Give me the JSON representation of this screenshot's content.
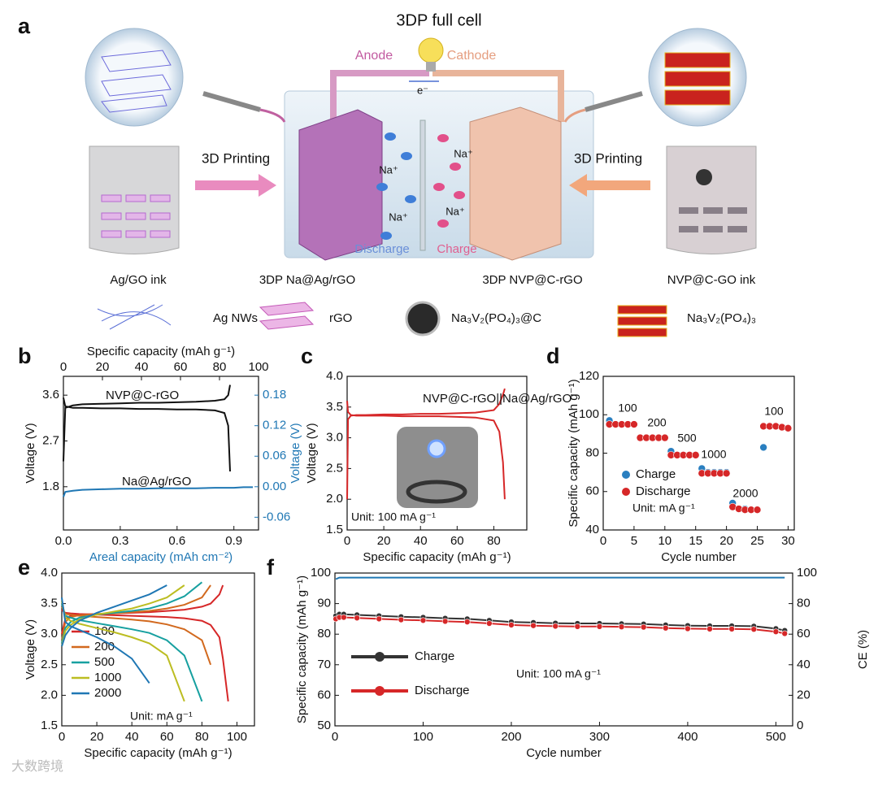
{
  "figure": {
    "panel_label": "a",
    "title": "3DP full cell",
    "anode": "Anode",
    "cathode": "Cathode",
    "electron": "e⁻",
    "printing_left": "3D Printing",
    "printing_right": "3D Printing",
    "ions": [
      "Na⁺",
      "Na⁺",
      "Na⁺",
      "Na⁺"
    ],
    "discharge": "Discharge",
    "charge": "Charge",
    "captions": [
      "Ag/GO ink",
      "3DP Na@Ag/rGO",
      "3DP NVP@C-rGO",
      "NVP@C-GO ink"
    ],
    "legend": [
      "Ag NWs",
      "rGO",
      "Na₃V₂(PO₄)₃@C",
      "Na₃V₂(PO₄)₃"
    ],
    "watermark": "大数跨境"
  },
  "chart_data": [
    {
      "type": "line",
      "panel_label": "b",
      "x_label": "Areal capacity (mAh cm⁻²)",
      "x_label_color": "#1f77b4",
      "x2_label": "Specific capacity (mAh g⁻¹)",
      "y_label": "Voltage (V)",
      "y2_label": "Voltage (V)",
      "y2_color": "#1f77b4",
      "xlim": [
        0,
        1.03
      ],
      "xticks": [
        {
          "value": 0,
          "label": "0.0"
        },
        0.3,
        0.6,
        0.9
      ],
      "x2lim": [
        0,
        100
      ],
      "x2ticks": [
        0,
        20,
        40,
        60,
        80,
        100
      ],
      "ylim": [
        0.95,
        3.97
      ],
      "yticks": [
        1.8,
        2.7,
        3.6
      ],
      "y2lim": [
        -0.085,
        0.217
      ],
      "y2ticks": [
        -0.06,
        {
          "value": 0,
          "label": "0.00"
        },
        0.06,
        0.12,
        0.18
      ],
      "x": [
        0,
        0.01,
        0.05,
        0.1,
        0.2,
        0.3,
        0.4,
        0.5,
        0.6,
        0.7,
        0.8,
        0.85,
        0.87,
        0.88,
        0.9,
        0.95,
        1.0
      ],
      "series": [
        {
          "name": "NVP@C-rGO",
          "color": "#111111",
          "charge": [
            2.3,
            3.35,
            3.4,
            3.42,
            3.43,
            3.44,
            3.45,
            3.45,
            3.46,
            3.47,
            3.49,
            3.52,
            3.6,
            3.8,
            null,
            null,
            null
          ],
          "discharge": [
            3.55,
            3.38,
            3.35,
            3.35,
            3.34,
            3.34,
            3.33,
            3.33,
            3.32,
            3.32,
            3.3,
            3.25,
            3.0,
            2.1,
            null,
            null,
            null
          ]
        },
        {
          "name": "Na@Ag/rGO",
          "color": "#1f77b4",
          "axis": "y2",
          "values": [
            -0.02,
            -0.01,
            -0.008,
            -0.006,
            -0.005,
            -0.004,
            -0.004,
            -0.003,
            -0.003,
            -0.003,
            -0.002,
            -0.002,
            -0.002,
            -0.002,
            -0.002,
            -0.001,
            -0.001
          ]
        }
      ]
    },
    {
      "type": "line",
      "panel_label": "c",
      "x_label": "Specific capacity (mAh g⁻¹)",
      "y_label": "Voltage (V)",
      "xlim": [
        0,
        98
      ],
      "xticks": [
        0,
        20,
        40,
        60,
        80
      ],
      "ylim": [
        1.5,
        4.0
      ],
      "yticks": [
        1.5,
        {
          "value": 2,
          "label": "2.0"
        },
        2.5,
        {
          "value": 3,
          "label": "3.0"
        },
        3.5,
        {
          "value": 4,
          "label": "4.0"
        }
      ],
      "x": [
        0,
        0.5,
        2,
        5,
        10,
        20,
        30,
        40,
        50,
        60,
        70,
        80,
        83,
        85,
        86
      ],
      "series": [
        {
          "name": "NVP@C-rGO||Na@Ag/rGO",
          "color": "#d62728",
          "charge": [
            2.0,
            3.3,
            3.36,
            3.37,
            3.37,
            3.38,
            3.38,
            3.39,
            3.39,
            3.4,
            3.41,
            3.45,
            3.55,
            3.7,
            3.8
          ],
          "discharge": [
            3.6,
            3.42,
            3.37,
            3.36,
            3.36,
            3.36,
            3.35,
            3.35,
            3.35,
            3.34,
            3.33,
            3.28,
            3.1,
            2.6,
            2.0
          ]
        }
      ],
      "annotations": [
        "Unit: 100 mA g⁻¹"
      ]
    },
    {
      "type": "scatter",
      "panel_label": "d",
      "x_label": "Cycle number",
      "y_label": "Specific capacity (mAh g⁻¹)",
      "xlim": [
        0,
        31
      ],
      "xticks": [
        0,
        5,
        10,
        15,
        20,
        25,
        30
      ],
      "ylim": [
        40,
        120
      ],
      "yticks": [
        40,
        60,
        80,
        100,
        120
      ],
      "x": [
        1,
        2,
        3,
        4,
        5,
        6,
        7,
        8,
        9,
        10,
        11,
        12,
        13,
        14,
        15,
        16,
        17,
        18,
        19,
        20,
        21,
        22,
        23,
        24,
        25,
        26,
        27,
        28,
        29,
        30
      ],
      "series": [
        {
          "name": "Charge",
          "color": "#2a7fc0",
          "values": [
            97,
            95,
            95,
            95,
            95,
            88,
            88,
            88,
            88,
            88,
            81,
            79,
            79,
            79,
            79,
            72,
            70,
            70,
            70,
            70,
            54,
            51,
            51,
            50.5,
            50.5,
            83,
            94,
            94,
            93.5,
            93
          ]
        },
        {
          "name": "Discharge",
          "color": "#d62728",
          "values": [
            95,
            95,
            95,
            95,
            95,
            88,
            88,
            88,
            88,
            88,
            79,
            79,
            79,
            79,
            79,
            69.5,
            69.5,
            69.5,
            69.5,
            69.5,
            52,
            51,
            50.5,
            50.5,
            50.5,
            94,
            94,
            94,
            93.5,
            93
          ]
        }
      ],
      "legend": true,
      "annotations": [
        "100",
        "200",
        "500",
        "1000",
        "2000",
        "100",
        "Unit: mA g⁻¹"
      ]
    },
    {
      "type": "line",
      "panel_label": "e",
      "x_label": "Specific capacity (mAh g⁻¹)",
      "y_label": "Voltage (V)",
      "xlim": [
        0,
        110
      ],
      "xticks": [
        0,
        20,
        40,
        60,
        80,
        100
      ],
      "ylim": [
        1.5,
        4.0
      ],
      "yticks": [
        1.5,
        {
          "value": 2,
          "label": "2.0"
        },
        2.5,
        {
          "value": 3,
          "label": "3.0"
        },
        3.5,
        {
          "value": 4,
          "label": "4.0"
        }
      ],
      "x": [
        0,
        2,
        5,
        10,
        20,
        30,
        40,
        50,
        60,
        70,
        80,
        85,
        90,
        92,
        95
      ],
      "series": [
        {
          "name": "100",
          "color": "#d62728",
          "charge": [
            3.0,
            3.25,
            3.3,
            3.32,
            3.33,
            3.34,
            3.35,
            3.36,
            3.38,
            3.4,
            3.45,
            3.5,
            3.65,
            3.8,
            null
          ],
          "discharge": [
            3.4,
            3.35,
            3.34,
            3.33,
            3.32,
            3.31,
            3.3,
            3.29,
            3.28,
            3.26,
            3.22,
            3.15,
            2.95,
            2.6,
            1.9
          ]
        },
        {
          "name": "200",
          "color": "#d2691e",
          "charge": [
            2.9,
            3.2,
            3.28,
            3.31,
            3.33,
            3.34,
            3.36,
            3.38,
            3.42,
            3.48,
            3.6,
            3.8,
            null,
            null,
            null
          ],
          "discharge": [
            3.45,
            3.33,
            3.32,
            3.3,
            3.28,
            3.26,
            3.24,
            3.21,
            3.16,
            3.08,
            2.9,
            2.5,
            null,
            null,
            null
          ]
        },
        {
          "name": "500",
          "color": "#17a0a0",
          "charge": [
            2.85,
            3.1,
            3.2,
            3.27,
            3.32,
            3.35,
            3.38,
            3.42,
            3.5,
            3.62,
            3.85,
            null,
            null,
            null,
            null
          ],
          "discharge": [
            3.5,
            3.3,
            3.27,
            3.23,
            3.18,
            3.13,
            3.08,
            3.02,
            2.9,
            2.65,
            1.9,
            null,
            null,
            null,
            null
          ]
        },
        {
          "name": "1000",
          "color": "#bcbd22",
          "charge": [
            2.8,
            3.05,
            3.15,
            3.24,
            3.32,
            3.37,
            3.42,
            3.5,
            3.6,
            3.8,
            null,
            null,
            null,
            null,
            null
          ],
          "discharge": [
            3.55,
            3.27,
            3.22,
            3.17,
            3.1,
            3.03,
            2.95,
            2.85,
            2.65,
            1.9,
            null,
            null,
            null,
            null,
            null
          ]
        },
        {
          "name": "2000",
          "color": "#1f77b4",
          "charge": [
            2.8,
            2.98,
            3.1,
            3.22,
            3.35,
            3.45,
            3.55,
            3.65,
            3.8,
            null,
            null,
            null,
            null,
            null,
            null
          ],
          "discharge": [
            3.6,
            3.2,
            3.13,
            3.07,
            2.95,
            2.8,
            2.6,
            2.2,
            null,
            null,
            null,
            null,
            null,
            null,
            null
          ]
        }
      ],
      "legend": true,
      "annotations": [
        "Unit: mA g⁻¹"
      ]
    },
    {
      "type": "line",
      "panel_label": "f",
      "markers": true,
      "x_label": "Cycle number",
      "y_label": "Specific capacity (mAh g⁻¹)",
      "y2_label": "CE (%)",
      "xlim": [
        0,
        519
      ],
      "xticks": [
        0,
        100,
        200,
        300,
        400,
        500
      ],
      "ylim": [
        50,
        100
      ],
      "yticks": [
        50,
        60,
        70,
        80,
        90,
        100
      ],
      "y2lim": [
        0,
        100
      ],
      "y2ticks": [
        0,
        20,
        40,
        60,
        80,
        100
      ],
      "x": [
        1,
        5,
        10,
        25,
        50,
        75,
        100,
        125,
        150,
        175,
        200,
        225,
        250,
        275,
        300,
        325,
        350,
        375,
        400,
        425,
        450,
        475,
        500,
        510
      ],
      "series": [
        {
          "name": "Charge",
          "color": "#333333",
          "values": [
            86,
            86.5,
            86.5,
            86.3,
            86,
            85.7,
            85.5,
            85.2,
            85,
            84.5,
            84,
            83.8,
            83.6,
            83.5,
            83.5,
            83.4,
            83.3,
            83,
            82.8,
            82.7,
            82.7,
            82.6,
            81.8,
            81.2
          ]
        },
        {
          "name": "Discharge",
          "color": "#d62728",
          "values": [
            85,
            85.5,
            85.5,
            85.3,
            85,
            84.7,
            84.5,
            84.2,
            84,
            83.5,
            83,
            82.8,
            82.6,
            82.5,
            82.5,
            82.4,
            82.3,
            82,
            81.8,
            81.7,
            81.7,
            81.6,
            80.8,
            80.2
          ]
        },
        {
          "color": "#1f77b4",
          "axis": "y2",
          "values": [
            96,
            97,
            97,
            97,
            97,
            97,
            97,
            97,
            97,
            97,
            97,
            97,
            97,
            97,
            97,
            97,
            97,
            97,
            97,
            97,
            97,
            97,
            97,
            97
          ]
        }
      ],
      "legend": true,
      "annotations": [
        "Unit: 100 mA g⁻¹"
      ]
    }
  ]
}
